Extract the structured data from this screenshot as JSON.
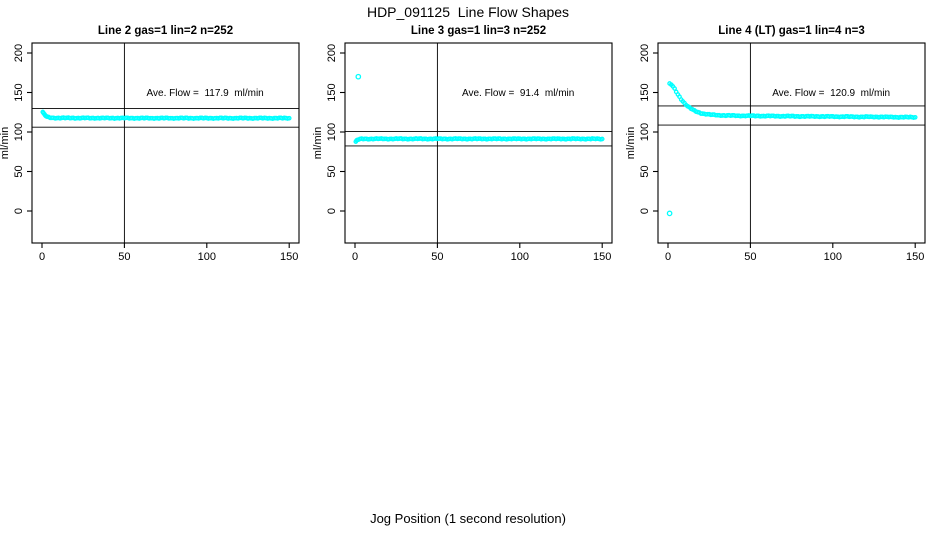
{
  "figure": {
    "title": "HDP_091125  Line Flow Shapes",
    "xlabel": "Jog Position (1 second resolution)"
  },
  "colors": {
    "points": "#00FFFF",
    "axis": "#000000",
    "background": "#FFFFFF"
  },
  "chart_data": [
    {
      "type": "scatter",
      "title": "Line 2 gas=1 lin=2 n=252",
      "ylabel": "ml/min",
      "annotation": "Ave. Flow =  117.9  ml/min",
      "ave_flow_ml_min": 117.9,
      "n": 252,
      "ref_line_x": 50,
      "ref_lines_y": [
        129.7,
        106.1
      ],
      "xticks": [
        0,
        50,
        100,
        150
      ],
      "yticks": [
        0,
        50,
        100,
        150,
        200
      ],
      "xlim": [
        0,
        150
      ],
      "ylim": [
        0,
        200
      ],
      "points": [
        [
          0.5,
          125
        ],
        [
          1,
          123.5
        ],
        [
          1.5,
          122.2
        ],
        [
          2,
          121
        ],
        [
          2.5,
          120
        ],
        [
          3,
          119.3
        ],
        [
          4,
          118.5
        ],
        [
          5,
          118.1
        ],
        [
          6,
          117.9
        ],
        [
          8,
          117.8
        ],
        [
          10,
          117.8
        ],
        [
          15,
          117.7
        ],
        [
          20,
          117.7
        ],
        [
          30,
          117.6
        ],
        [
          40,
          117.6
        ],
        [
          50,
          117.6
        ],
        [
          60,
          117.5
        ],
        [
          70,
          117.5
        ],
        [
          80,
          117.5
        ],
        [
          90,
          117.5
        ],
        [
          100,
          117.5
        ],
        [
          110,
          117.5
        ],
        [
          120,
          117.5
        ],
        [
          130,
          117.5
        ],
        [
          140,
          117.5
        ],
        [
          150,
          117.5
        ]
      ],
      "outliers": []
    },
    {
      "type": "scatter",
      "title": "Line 3 gas=1 lin=3 n=252",
      "ylabel": "ml/min",
      "annotation": "Ave. Flow =  91.4  ml/min",
      "ave_flow_ml_min": 91.4,
      "n": 252,
      "ref_line_x": 50,
      "ref_lines_y": [
        100.5,
        82.3
      ],
      "xticks": [
        0,
        50,
        100,
        150
      ],
      "yticks": [
        0,
        50,
        100,
        150,
        200
      ],
      "xlim": [
        0,
        150
      ],
      "ylim": [
        0,
        200
      ],
      "points": [
        [
          0.5,
          87.5
        ],
        [
          1,
          89
        ],
        [
          1.5,
          89.8
        ],
        [
          2,
          90.4
        ],
        [
          3,
          90.9
        ],
        [
          4,
          91.1
        ],
        [
          5,
          91.2
        ],
        [
          10,
          91.3
        ],
        [
          20,
          91.3
        ],
        [
          30,
          91.3
        ],
        [
          40,
          91.3
        ],
        [
          50,
          91.3
        ],
        [
          60,
          91.3
        ],
        [
          70,
          91.3
        ],
        [
          80,
          91.3
        ],
        [
          90,
          91.3
        ],
        [
          100,
          91.3
        ],
        [
          110,
          91.3
        ],
        [
          120,
          91.3
        ],
        [
          130,
          91.3
        ],
        [
          140,
          91.3
        ],
        [
          150,
          91.2
        ]
      ],
      "outliers": [
        [
          2,
          170
        ]
      ]
    },
    {
      "type": "scatter",
      "title": "Line 4 (LT) gas=1 lin=4 n=3",
      "ylabel": "ml/min",
      "annotation": "Ave. Flow =  120.9  ml/min",
      "ave_flow_ml_min": 120.9,
      "n": 3,
      "ref_line_x": 50,
      "ref_lines_y": [
        133.0,
        108.8
      ],
      "xticks": [
        0,
        50,
        100,
        150
      ],
      "yticks": [
        0,
        50,
        100,
        150,
        200
      ],
      "xlim": [
        0,
        150
      ],
      "ylim": [
        0,
        200
      ],
      "points": [
        [
          1,
          161
        ],
        [
          2,
          160
        ],
        [
          3,
          157.5
        ],
        [
          4,
          154.5
        ],
        [
          5,
          151
        ],
        [
          6,
          147.5
        ],
        [
          7,
          144.5
        ],
        [
          8,
          141.5
        ],
        [
          9,
          139
        ],
        [
          10,
          136.5
        ],
        [
          11,
          134.5
        ],
        [
          12,
          132.5
        ],
        [
          13,
          131
        ],
        [
          14,
          129.5
        ],
        [
          15,
          128.2
        ],
        [
          16,
          127
        ],
        [
          17,
          126
        ],
        [
          18,
          125.2
        ],
        [
          19,
          124.5
        ],
        [
          20,
          123.9
        ],
        [
          22,
          123
        ],
        [
          24,
          122.4
        ],
        [
          26,
          121.9
        ],
        [
          28,
          121.6
        ],
        [
          30,
          121.3
        ],
        [
          35,
          120.9
        ],
        [
          40,
          120.7
        ],
        [
          45,
          120.5
        ],
        [
          50,
          120.4
        ],
        [
          60,
          120.2
        ],
        [
          70,
          120
        ],
        [
          80,
          119.8
        ],
        [
          90,
          119.7
        ],
        [
          100,
          119.5
        ],
        [
          110,
          119.3
        ],
        [
          120,
          119.2
        ],
        [
          130,
          119
        ],
        [
          140,
          118.8
        ],
        [
          150,
          118.6
        ]
      ],
      "outliers": [
        [
          1,
          -3
        ]
      ]
    }
  ]
}
